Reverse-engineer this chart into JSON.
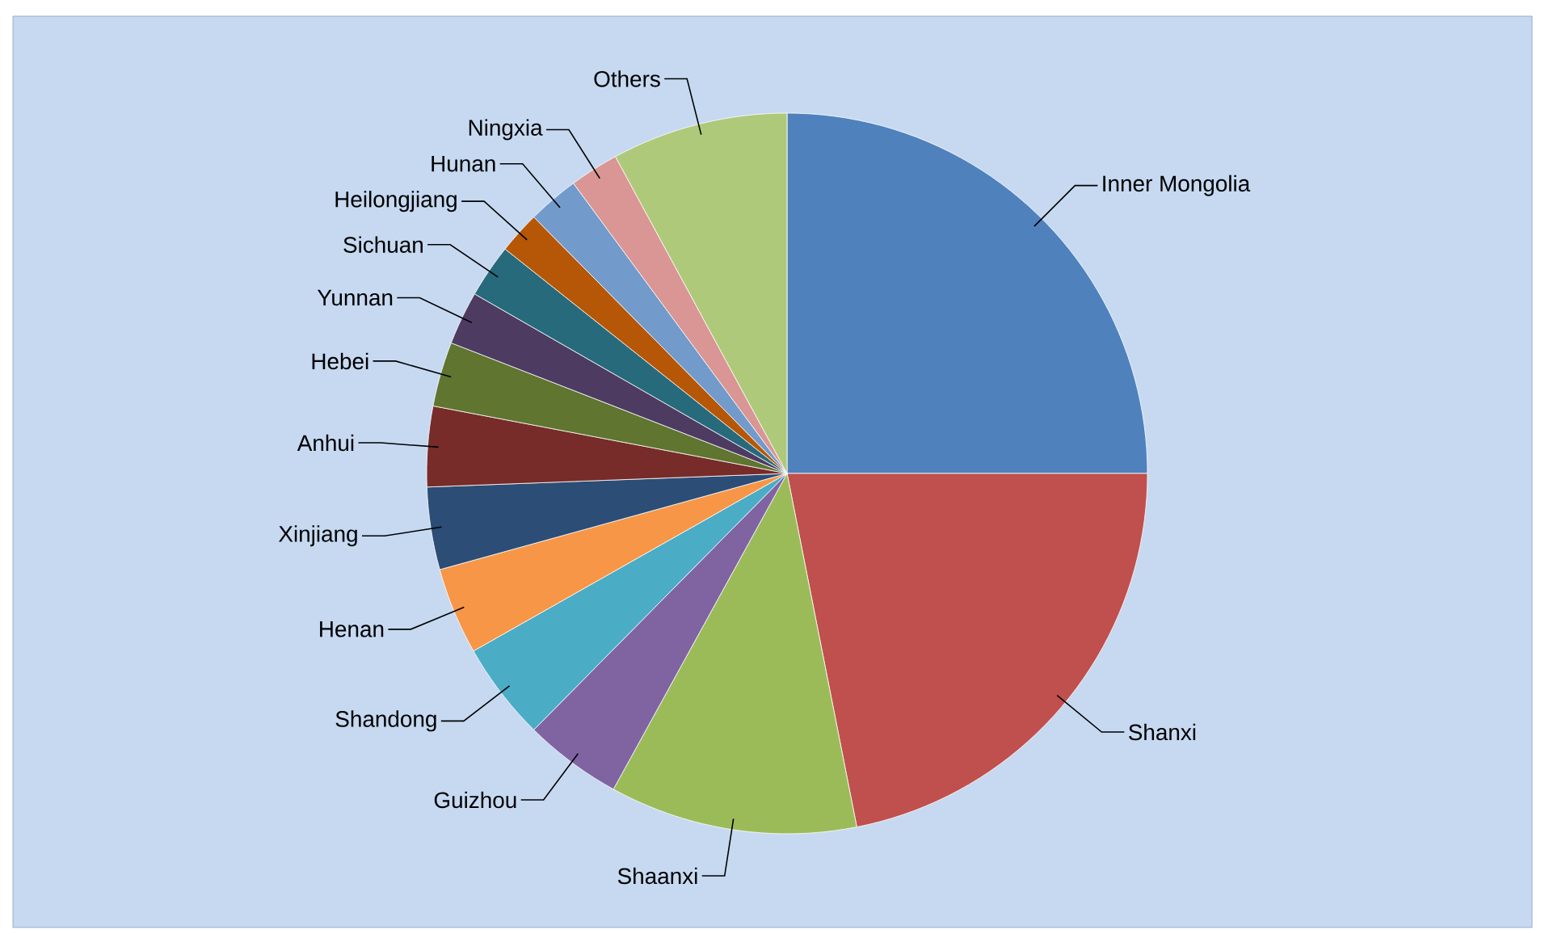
{
  "chart_data": {
    "type": "pie",
    "categories": [
      "Inner Mongolia",
      "Shanxi",
      "Shaanxi",
      "Guizhou",
      "Shandong",
      "Henan",
      "Xinjiang",
      "Anhui",
      "Hebei",
      "Yunnan",
      "Sichuan",
      "Heilongjiang",
      "Hunan",
      "Ningxia",
      "Others"
    ],
    "values": [
      25,
      21.9,
      11.1,
      4.4,
      4.4,
      3.9,
      3.7,
      3.6,
      2.9,
      2.4,
      2.4,
      1.9,
      2.3,
      2.2,
      7.9
    ],
    "colors": [
      "#4f81bd",
      "#c0504d",
      "#9bbb59",
      "#8064a2",
      "#4bacc6",
      "#f79646",
      "#2c4d75",
      "#772c2a",
      "#5f7530",
      "#4d3b62",
      "#276a7c",
      "#b65708",
      "#729aca",
      "#d99694",
      "#afc97a"
    ]
  }
}
